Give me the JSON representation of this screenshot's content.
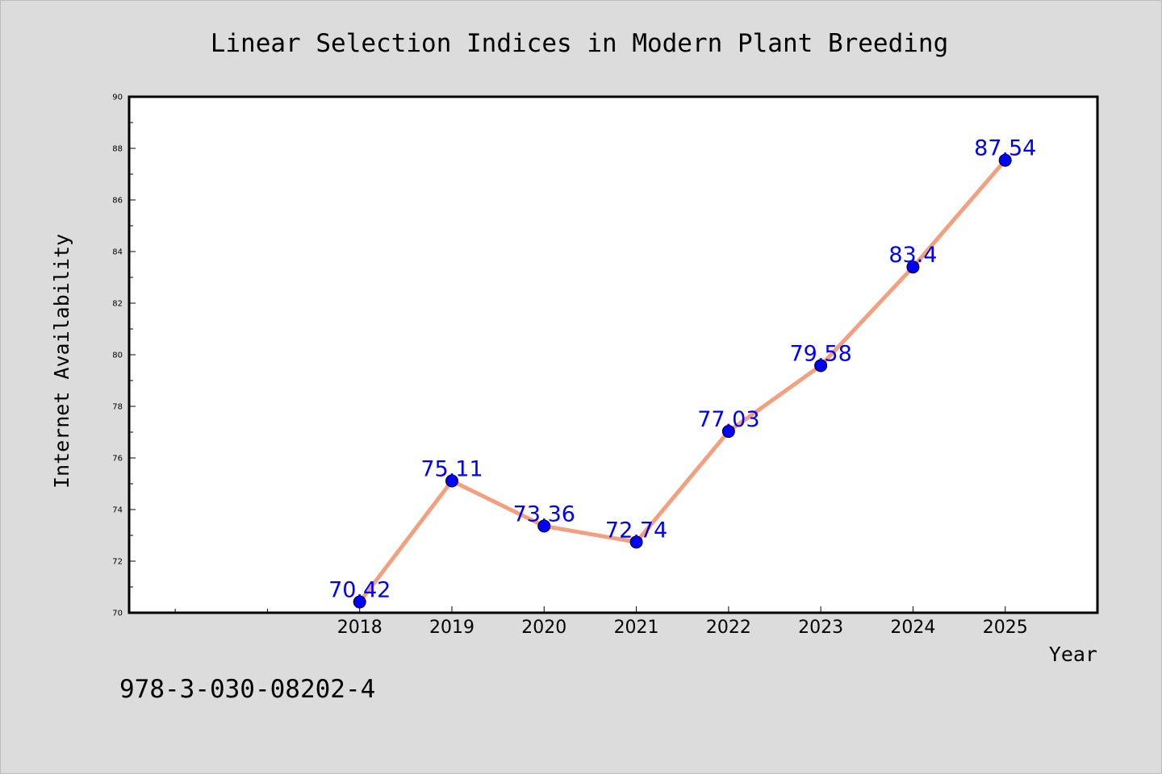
{
  "chart_data": {
    "type": "line",
    "title": "Linear Selection Indices in Modern Plant Breeding",
    "xlabel": "Year",
    "ylabel": "Internet Availability",
    "x": [
      "2018",
      "2019",
      "2020",
      "2021",
      "2022",
      "2023",
      "2024",
      "2025"
    ],
    "series": [
      {
        "values": [
          70.42,
          75.11,
          73.36,
          72.74,
          77.03,
          79.58,
          83.4,
          87.54
        ]
      }
    ],
    "data_labels": [
      "70.42",
      "75.11",
      "73.36",
      "72.74",
      "77.03",
      "79.58",
      "83.4",
      "87.54"
    ],
    "ylim": [
      70,
      90
    ],
    "yticks": [
      "70",
      "72",
      "74",
      "76",
      "78",
      "80",
      "82",
      "84",
      "86",
      "88",
      "90"
    ],
    "x_slots_before_first": 2,
    "grid": false,
    "line_color": "#f4a07f",
    "marker_color": "#0000ff",
    "label_color": "#0000ff",
    "background_color": "#dcdcdc"
  },
  "footer_text": "978-3-030-08202-4"
}
